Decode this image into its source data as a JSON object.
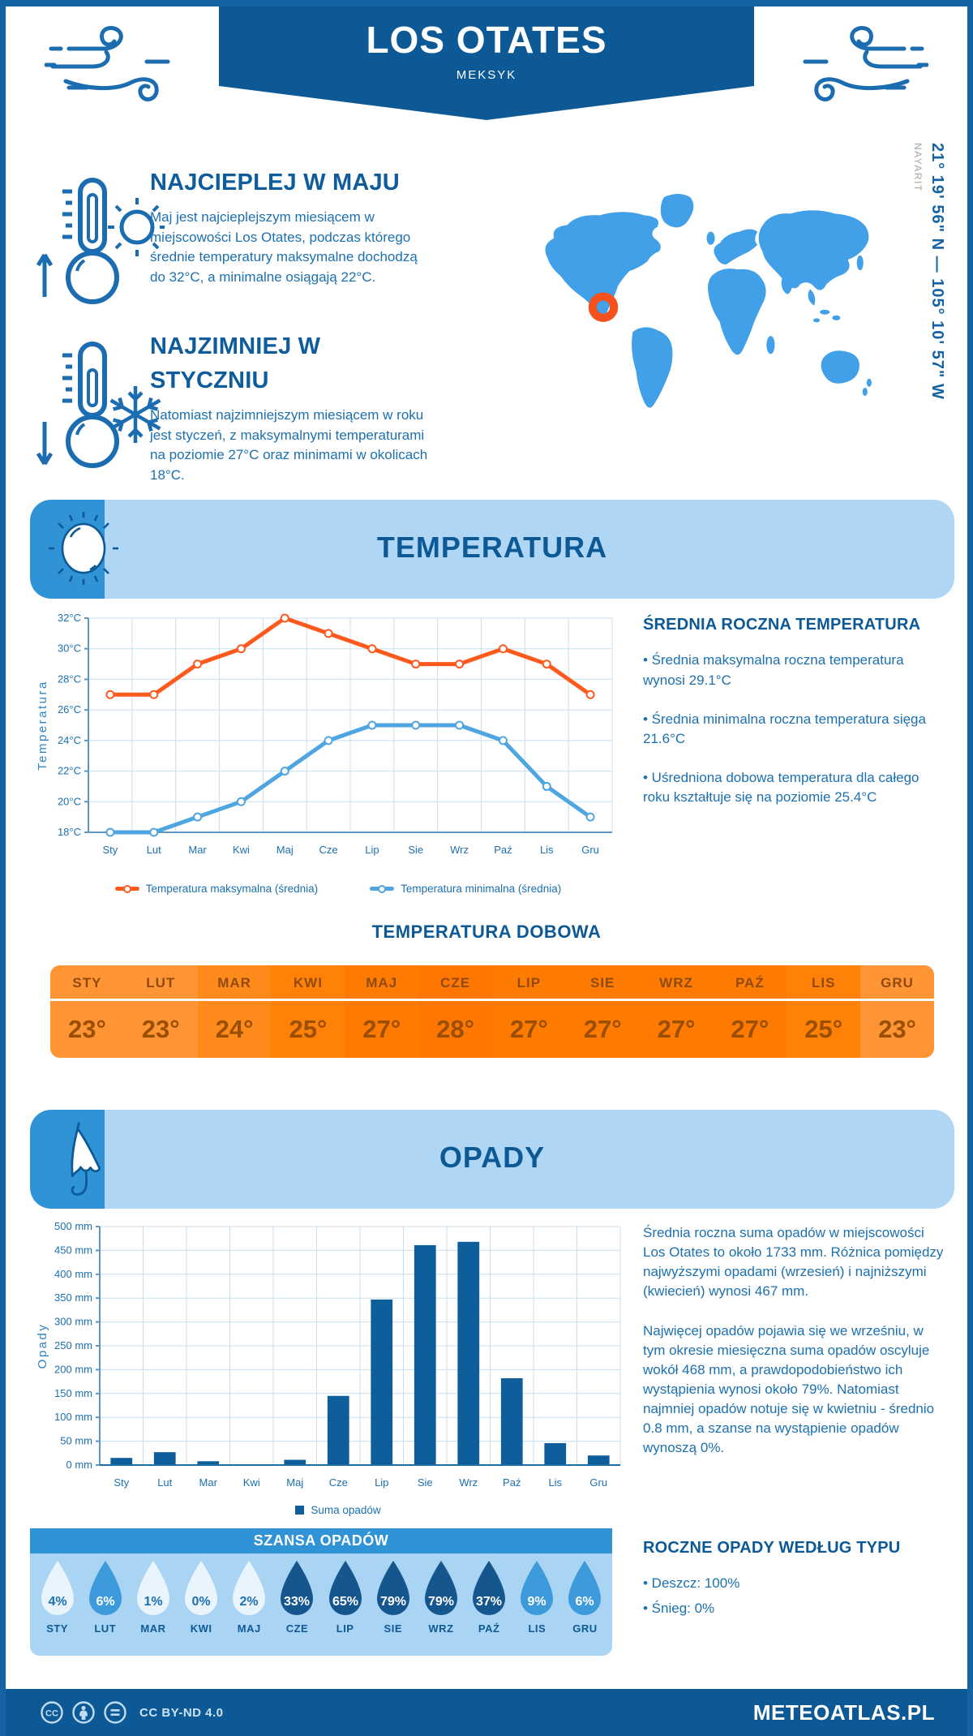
{
  "theme": {
    "dark_blue": "#0D5996",
    "medium_blue": "#2F93D6",
    "light_band": "#AFD7F5",
    "map_blue": "#41A0E8",
    "marker_orange": "#F4511E",
    "text_blue": "#1C70B0",
    "heading_blue": "#0F5C9C"
  },
  "header": {
    "title": "LOS OTATES",
    "subtitle": "MEKSYK"
  },
  "location": {
    "region": "NAYARIT",
    "coordinates": "21° 19' 56\" N — 105° 10' 57\" W"
  },
  "warmest": {
    "heading": "NAJCIEPLEJ W MAJU",
    "body": "Maj jest najcieplejszym miesiącem w miejscowości Los Otates, podczas którego średnie temperatury maksymalne dochodzą do 32°C, a minimalne osiągają 22°C."
  },
  "coldest": {
    "heading": "NAJZIMNIEJ W STYCZNIU",
    "body": "Natomiast najzimniejszym miesiącem w roku jest styczeń, z maksymalnymi temperaturami na poziomie 27°C oraz minimami w okolicach 18°C."
  },
  "temperature_section": {
    "title": "TEMPERATURA",
    "annual": {
      "heading": "ŚREDNIA ROCZNA TEMPERATURA",
      "bullets": [
        "• Średnia maksymalna roczna temperatura wynosi 29.1°C",
        "• Średnia minimalna roczna temperatura sięga 21.6°C",
        "• Uśredniona dobowa temperatura dla całego roku kształtuje się na poziomie 25.4°C"
      ]
    },
    "daily": {
      "heading": "TEMPERATURA DOBOWA",
      "months": [
        "STY",
        "LUT",
        "MAR",
        "KWI",
        "MAJ",
        "CZE",
        "LIP",
        "SIE",
        "WRZ",
        "PAŹ",
        "LIS",
        "GRU"
      ],
      "values": [
        23,
        23,
        24,
        25,
        27,
        28,
        27,
        27,
        27,
        27,
        25,
        23
      ],
      "colors": {
        "23": "#FF9434",
        "24": "#FF8A1C",
        "25": "#FF8108",
        "27": "#FF7A00",
        "28": "#FF7600"
      }
    }
  },
  "precipitation_section": {
    "title": "OPADY",
    "paragraphs": [
      "Średnia roczna suma opadów w miejscowości Los Otates to około 1733 mm. Różnica pomiędzy najwyższymi opadami (wrzesień) i najniższymi (kwiecień) wynosi 467 mm.",
      "Najwięcej opadów pojawia się we wrześniu, w tym okresie miesięczna suma opadów oscyluje wokół 468 mm, a prawdopodobieństwo ich wystąpienia wynosi około 79%. Natomiast najmniej opadów notuje się w kwietniu - średnio 0.8 mm, a szanse na wystąpienie opadów wynoszą 0%."
    ],
    "type_heading": "ROCZNE OPADY WEDŁUG TYPU",
    "type_bullets": [
      "• Deszcz: 100%",
      "• Śnieg: 0%"
    ],
    "chance": {
      "heading": "SZANSA OPADÓW",
      "months": [
        "STY",
        "LUT",
        "MAR",
        "KWI",
        "MAJ",
        "CZE",
        "LIP",
        "SIE",
        "WRZ",
        "PAŹ",
        "LIS",
        "GRU"
      ],
      "values": [
        4,
        6,
        1,
        0,
        2,
        33,
        65,
        79,
        79,
        37,
        9,
        6
      ],
      "colors": {
        "light": "#EAF4FC",
        "medium": "#3E9BDB",
        "dark": "#15568E"
      }
    }
  },
  "footer": {
    "license": "CC BY-ND 4.0",
    "site": "METEOATLAS.PL"
  },
  "chart_data": [
    {
      "type": "line",
      "title": "Temperatura",
      "categories": [
        "Sty",
        "Lut",
        "Mar",
        "Kwi",
        "Maj",
        "Cze",
        "Lip",
        "Sie",
        "Wrz",
        "Paź",
        "Lis",
        "Gru"
      ],
      "series": [
        {
          "name": "Temperatura maksymalna (średnia)",
          "color": "#FF5A1E",
          "values": [
            27,
            27,
            29,
            30,
            32,
            31,
            30,
            29,
            29,
            30,
            29,
            27
          ]
        },
        {
          "name": "Temperatura minimalna (średnia)",
          "color": "#4FA5E0",
          "values": [
            18,
            18,
            19,
            20,
            22,
            24,
            25,
            25,
            25,
            24,
            21,
            19
          ]
        }
      ],
      "ylabel": "Temperatura",
      "ylim": [
        18,
        32
      ],
      "ytick_step": 2,
      "yunit": "°C",
      "grid": true,
      "legend_position": "bottom"
    },
    {
      "type": "bar",
      "title": "Opady",
      "categories": [
        "Sty",
        "Lut",
        "Mar",
        "Kwi",
        "Maj",
        "Cze",
        "Lip",
        "Sie",
        "Wrz",
        "Paź",
        "Lis",
        "Gru"
      ],
      "values": [
        15,
        27,
        8,
        0.8,
        11,
        145,
        347,
        461,
        468,
        182,
        46,
        20
      ],
      "series_name": "Suma opadów",
      "color": "#0F5E9C",
      "ylabel": "Opady",
      "ylim": [
        0,
        500
      ],
      "ytick_step": 50,
      "yunit": " mm",
      "grid": true,
      "legend_position": "bottom"
    }
  ]
}
